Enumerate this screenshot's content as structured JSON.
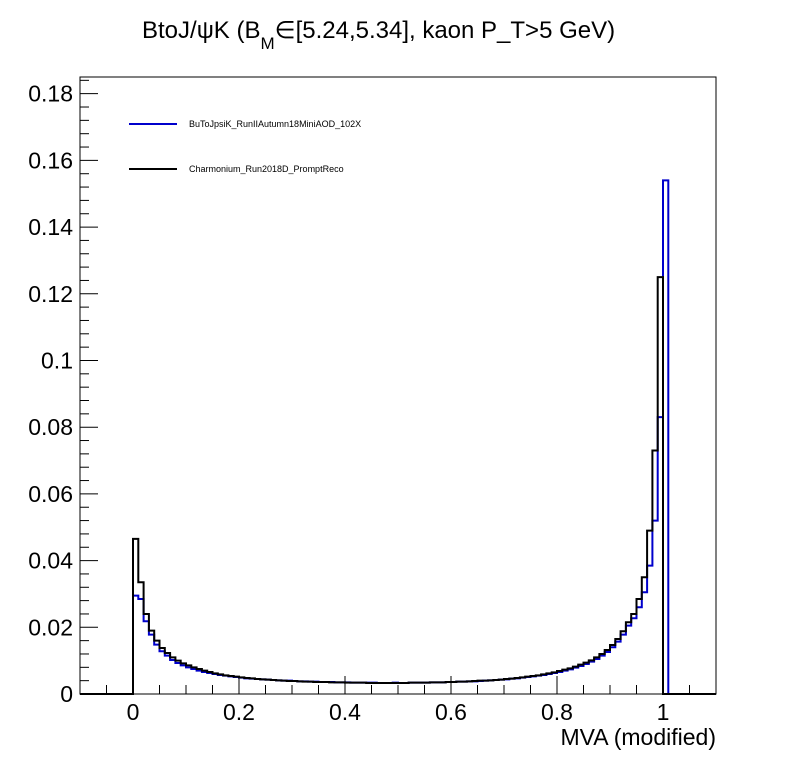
{
  "chart_data": {
    "type": "step-histogram",
    "title": {
      "main": "BtoJ/ψK (B",
      "sub": "M",
      "rest": "∈[5.24,5.34], kaon P_T>5 GeV)"
    },
    "xlabel": "MVA (modified)",
    "ylabel": "",
    "xlim": [
      -0.1,
      1.1
    ],
    "ylim": [
      0,
      0.185
    ],
    "x_ticks": [
      {
        "value": 0,
        "label": "0"
      },
      {
        "value": 0.2,
        "label": "0.2"
      },
      {
        "value": 0.4,
        "label": "0.4"
      },
      {
        "value": 0.6,
        "label": "0.6"
      },
      {
        "value": 0.8,
        "label": "0.8"
      },
      {
        "value": 1,
        "label": "1"
      }
    ],
    "y_ticks": [
      {
        "value": 0,
        "label": "0"
      },
      {
        "value": 0.02,
        "label": "0.02"
      },
      {
        "value": 0.04,
        "label": "0.04"
      },
      {
        "value": 0.06,
        "label": "0.06"
      },
      {
        "value": 0.08,
        "label": "0.08"
      },
      {
        "value": 0.1,
        "label": "0.1"
      },
      {
        "value": 0.12,
        "label": "0.12"
      },
      {
        "value": 0.14,
        "label": "0.14"
      },
      {
        "value": 0.16,
        "label": "0.16"
      },
      {
        "value": 0.18,
        "label": "0.18"
      }
    ],
    "bin_width": 0.01,
    "bin_start": 0,
    "grid": false,
    "legend_position": "top-left",
    "series": [
      {
        "name": "BuToJpsiK_RunIIAutumn18MiniAOD_102X",
        "color": "#0000cc",
        "values": [
          0.0295,
          0.0285,
          0.0218,
          0.0178,
          0.0148,
          0.0128,
          0.0115,
          0.0102,
          0.0093,
          0.0086,
          0.008,
          0.0075,
          0.007,
          0.0066,
          0.0063,
          0.006,
          0.0057,
          0.0055,
          0.0053,
          0.0051,
          0.0049,
          0.0047,
          0.0046,
          0.0045,
          0.0044,
          0.0043,
          0.0042,
          0.0041,
          0.004,
          0.004,
          0.0039,
          0.0038,
          0.0038,
          0.0037,
          0.0037,
          0.0036,
          0.0036,
          0.0036,
          0.0035,
          0.0035,
          0.0035,
          0.0034,
          0.0034,
          0.0034,
          0.0034,
          0.0034,
          0.0033,
          0.0033,
          0.0033,
          0.0034,
          0.0033,
          0.0033,
          0.0034,
          0.0034,
          0.0034,
          0.0034,
          0.0035,
          0.0035,
          0.0035,
          0.0036,
          0.0036,
          0.0037,
          0.0037,
          0.0038,
          0.0038,
          0.0039,
          0.004,
          0.0041,
          0.0042,
          0.0043,
          0.0044,
          0.0046,
          0.0047,
          0.0049,
          0.0051,
          0.0053,
          0.0055,
          0.0057,
          0.006,
          0.0063,
          0.0066,
          0.007,
          0.0074,
          0.0079,
          0.0084,
          0.009,
          0.0097,
          0.0105,
          0.0115,
          0.0126,
          0.014,
          0.0157,
          0.0178,
          0.0205,
          0.0227,
          0.026,
          0.0305,
          0.0385,
          0.052,
          0.083,
          0.154
        ],
        "overflow": 0
      },
      {
        "name": "Charmonium_Run2018D_PromptReco",
        "color": "#000000",
        "values": [
          0.0465,
          0.0335,
          0.024,
          0.019,
          0.016,
          0.0138,
          0.0123,
          0.011,
          0.01,
          0.0092,
          0.0086,
          0.008,
          0.0075,
          0.007,
          0.0066,
          0.0062,
          0.0059,
          0.0056,
          0.0054,
          0.0052,
          0.005,
          0.0048,
          0.0047,
          0.0045,
          0.0044,
          0.0043,
          0.0042,
          0.0041,
          0.004,
          0.0039,
          0.0039,
          0.0038,
          0.0037,
          0.0037,
          0.0036,
          0.0036,
          0.0036,
          0.0035,
          0.0035,
          0.0035,
          0.0034,
          0.0034,
          0.0034,
          0.0034,
          0.0033,
          0.0033,
          0.0033,
          0.0033,
          0.0033,
          0.0033,
          0.0033,
          0.0033,
          0.0034,
          0.0034,
          0.0034,
          0.0034,
          0.0035,
          0.0035,
          0.0035,
          0.0036,
          0.0036,
          0.0037,
          0.0037,
          0.0038,
          0.0039,
          0.004,
          0.004,
          0.0041,
          0.0042,
          0.0043,
          0.0045,
          0.0046,
          0.0048,
          0.005,
          0.0052,
          0.0054,
          0.0056,
          0.0059,
          0.0062,
          0.0065,
          0.0069,
          0.0073,
          0.0077,
          0.0082,
          0.0088,
          0.0094,
          0.0101,
          0.011,
          0.012,
          0.0132,
          0.0147,
          0.0165,
          0.0188,
          0.0215,
          0.024,
          0.0285,
          0.035,
          0.049,
          0.073,
          0.125
        ],
        "overflow": 0
      }
    ]
  }
}
